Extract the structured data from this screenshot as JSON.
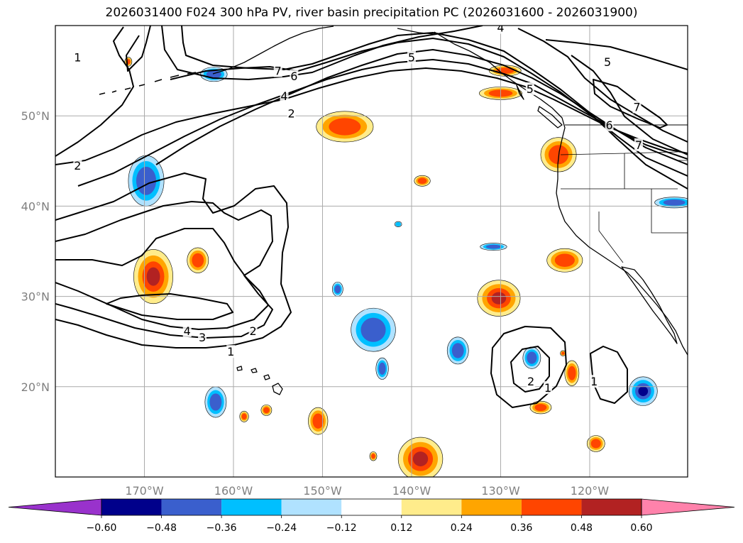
{
  "title": "2026031400 F024 300 hPa PV, river basin precipitation PC (2026031600 - 2026031900)",
  "map": {
    "projection": "PlateCarree",
    "lon_range": [
      -180,
      -109
    ],
    "lat_range": [
      10,
      60
    ],
    "lon_ticks": [
      {
        "lon": -170,
        "label": "170°W"
      },
      {
        "lon": -160,
        "label": "160°W"
      },
      {
        "lon": -150,
        "label": "150°W"
      },
      {
        "lon": -140,
        "label": "140°W"
      },
      {
        "lon": -130,
        "label": "130°W"
      },
      {
        "lon": -120,
        "label": "120°W"
      }
    ],
    "lat_ticks": [
      {
        "lat": 20,
        "label": "20°N"
      },
      {
        "lat": 30,
        "label": "30°N"
      },
      {
        "lat": 40,
        "label": "40°N"
      },
      {
        "lat": 50,
        "label": "50°N"
      }
    ],
    "pv_contour_labels": [
      {
        "text": "1",
        "lon": -177.5,
        "lat": 56.5
      },
      {
        "text": "5",
        "lon": -140.0,
        "lat": 56.5
      },
      {
        "text": "4",
        "lon": -130.0,
        "lat": 59.8
      },
      {
        "text": "5",
        "lon": -118.0,
        "lat": 56.0
      },
      {
        "text": "7",
        "lon": -155.0,
        "lat": 55.0
      },
      {
        "text": "6",
        "lon": -153.2,
        "lat": 54.4
      },
      {
        "text": "4",
        "lon": -154.3,
        "lat": 52.2
      },
      {
        "text": "2",
        "lon": -153.5,
        "lat": 50.3
      },
      {
        "text": "5",
        "lon": -126.7,
        "lat": 53.0
      },
      {
        "text": "7",
        "lon": -114.7,
        "lat": 51.0
      },
      {
        "text": "6",
        "lon": -117.8,
        "lat": 49.0
      },
      {
        "text": "7",
        "lon": -114.5,
        "lat": 46.8
      },
      {
        "text": "2",
        "lon": -177.5,
        "lat": 44.5
      },
      {
        "text": "4",
        "lon": -165.2,
        "lat": 26.2
      },
      {
        "text": "3",
        "lon": -163.5,
        "lat": 25.5
      },
      {
        "text": "2",
        "lon": -157.8,
        "lat": 26.2
      },
      {
        "text": "1",
        "lon": -160.3,
        "lat": 23.9
      },
      {
        "text": "2",
        "lon": -126.6,
        "lat": 20.6
      },
      {
        "text": "1",
        "lon": -124.7,
        "lat": 19.9
      },
      {
        "text": "1",
        "lon": -119.5,
        "lat": 20.6
      }
    ],
    "precip_blobs": [
      {
        "class": "pos",
        "lon": -147.5,
        "lat": 48.8,
        "rx": 3.2,
        "ry": 1.7,
        "level": 0.4
      },
      {
        "class": "pos",
        "lon": -123.5,
        "lat": 45.7,
        "rx": 2.0,
        "ry": 1.9,
        "level": 0.45
      },
      {
        "class": "pos",
        "lon": -129.5,
        "lat": 55.0,
        "rx": 1.8,
        "ry": 0.6,
        "level": 0.36
      },
      {
        "class": "pos",
        "lon": -130.0,
        "lat": 52.5,
        "rx": 2.4,
        "ry": 0.7,
        "level": 0.36
      },
      {
        "class": "pos",
        "lon": -138.8,
        "lat": 42.8,
        "rx": 0.9,
        "ry": 0.6,
        "level": 0.36
      },
      {
        "class": "pos",
        "lon": -169.0,
        "lat": 32.2,
        "rx": 2.2,
        "ry": 3.0,
        "level": 0.5
      },
      {
        "class": "pos",
        "lon": -164.0,
        "lat": 34.0,
        "rx": 1.2,
        "ry": 1.4,
        "level": 0.4
      },
      {
        "class": "pos",
        "lon": -130.2,
        "lat": 29.8,
        "rx": 2.4,
        "ry": 2.0,
        "level": 0.5
      },
      {
        "class": "pos",
        "lon": -122.8,
        "lat": 34.0,
        "rx": 2.0,
        "ry": 1.3,
        "level": 0.4
      },
      {
        "class": "pos",
        "lon": -122.0,
        "lat": 21.5,
        "rx": 0.8,
        "ry": 1.4,
        "level": 0.36
      },
      {
        "class": "pos",
        "lon": -125.5,
        "lat": 17.7,
        "rx": 1.2,
        "ry": 0.7,
        "level": 0.36
      },
      {
        "class": "pos",
        "lon": -139.0,
        "lat": 12.0,
        "rx": 2.5,
        "ry": 2.4,
        "level": 0.5
      },
      {
        "class": "pos",
        "lon": -150.5,
        "lat": 16.2,
        "rx": 1.1,
        "ry": 1.5,
        "level": 0.36
      },
      {
        "class": "pos",
        "lon": -156.3,
        "lat": 17.4,
        "rx": 0.6,
        "ry": 0.6,
        "level": 0.36
      },
      {
        "class": "pos",
        "lon": -158.8,
        "lat": 16.7,
        "rx": 0.5,
        "ry": 0.6,
        "level": 0.36
      },
      {
        "class": "pos",
        "lon": -119.3,
        "lat": 13.7,
        "rx": 1.0,
        "ry": 0.9,
        "level": 0.36
      },
      {
        "class": "pos",
        "lon": -171.8,
        "lat": 56.0,
        "rx": 0.4,
        "ry": 0.5,
        "level": 0.36
      },
      {
        "class": "pos",
        "lon": -144.3,
        "lat": 12.3,
        "rx": 0.4,
        "ry": 0.5,
        "level": 0.36
      },
      {
        "class": "pos",
        "lon": -123.0,
        "lat": 23.7,
        "rx": 0.3,
        "ry": 0.3,
        "level": 0.36
      },
      {
        "class": "neg",
        "lon": -169.8,
        "lat": 42.8,
        "rx": 2.0,
        "ry": 2.8,
        "level": -0.4
      },
      {
        "class": "neg",
        "lon": -162.2,
        "lat": 54.6,
        "rx": 1.5,
        "ry": 0.8,
        "level": -0.36
      },
      {
        "class": "neg",
        "lon": -144.3,
        "lat": 26.3,
        "rx": 2.5,
        "ry": 2.4,
        "level": -0.4
      },
      {
        "class": "neg",
        "lon": -143.3,
        "lat": 22.0,
        "rx": 0.7,
        "ry": 1.2,
        "level": -0.36
      },
      {
        "class": "neg",
        "lon": -134.8,
        "lat": 24.0,
        "rx": 1.2,
        "ry": 1.5,
        "level": -0.36
      },
      {
        "class": "neg",
        "lon": -126.5,
        "lat": 23.2,
        "rx": 1.0,
        "ry": 1.2,
        "level": -0.36
      },
      {
        "class": "neg",
        "lon": -162.0,
        "lat": 18.3,
        "rx": 1.2,
        "ry": 1.7,
        "level": -0.36
      },
      {
        "class": "neg",
        "lon": -148.3,
        "lat": 30.8,
        "rx": 0.6,
        "ry": 0.8,
        "level": -0.36
      },
      {
        "class": "neg",
        "lon": -114.0,
        "lat": 19.5,
        "rx": 1.6,
        "ry": 1.6,
        "level": -0.5
      },
      {
        "class": "neg",
        "lon": -110.5,
        "lat": 40.4,
        "rx": 2.2,
        "ry": 0.6,
        "level": -0.36
      },
      {
        "class": "neg",
        "lon": -130.8,
        "lat": 35.5,
        "rx": 1.5,
        "ry": 0.4,
        "level": -0.36
      },
      {
        "class": "neg",
        "lon": -141.5,
        "lat": 38.0,
        "rx": 0.4,
        "ry": 0.3,
        "level": -0.24
      }
    ]
  },
  "colorbar": {
    "ticks": [
      "−0.60",
      "−0.48",
      "−0.36",
      "−0.24",
      "−0.12",
      "0.12",
      "0.24",
      "0.36",
      "0.48",
      "0.60"
    ],
    "colors": [
      "#9932cc",
      "#00008b",
      "#3a5fcd",
      "#00bfff",
      "#b0e2ff",
      "#ffffff",
      "#ffec8b",
      "#ffa500",
      "#ff4500",
      "#b22222",
      "#ff82ab"
    ],
    "extend": "both"
  }
}
